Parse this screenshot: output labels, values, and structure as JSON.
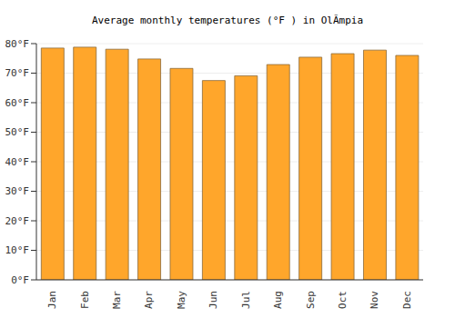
{
  "chart_data": {
    "type": "bar",
    "title": "Average monthly temperatures (°F ) in OlÃmpia",
    "categories": [
      "Jan",
      "Feb",
      "Mar",
      "Apr",
      "May",
      "Jun",
      "Jul",
      "Aug",
      "Sep",
      "Oct",
      "Nov",
      "Dec"
    ],
    "values": [
      78.5,
      78.8,
      78.1,
      74.8,
      71.6,
      67.5,
      69.1,
      72.9,
      75.4,
      76.6,
      77.8,
      76.0
    ],
    "color": "#ffa62b",
    "ylim": [
      0,
      80
    ],
    "yticks": [
      {
        "value": 0,
        "label": "0°F"
      },
      {
        "value": 10,
        "label": "10°F"
      },
      {
        "value": 20,
        "label": "20°F"
      },
      {
        "value": 30,
        "label": "30°F"
      },
      {
        "value": 40,
        "label": "40°F"
      },
      {
        "value": 50,
        "label": "50°F"
      },
      {
        "value": 60,
        "label": "60°F"
      },
      {
        "value": 70,
        "label": "70°F"
      },
      {
        "value": 80,
        "label": "80°F"
      }
    ],
    "grid": true
  }
}
